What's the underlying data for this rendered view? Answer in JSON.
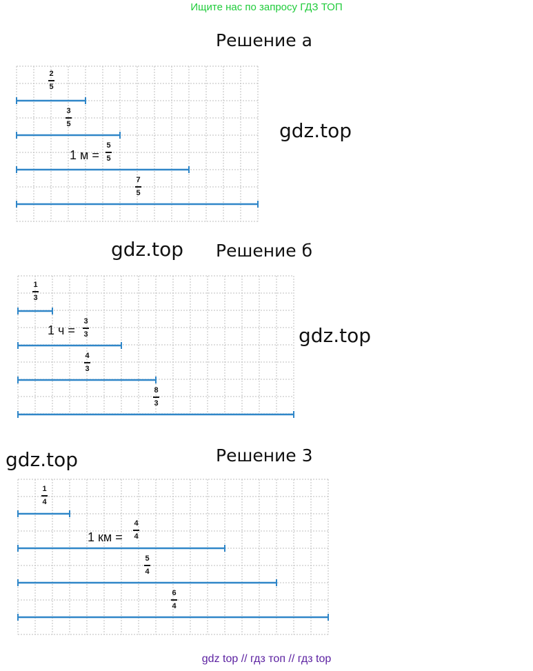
{
  "banner": "Ищите нас по запросу ГДЗ ТОП",
  "sections": [
    {
      "title": "Решение а"
    },
    {
      "title": "Решение б"
    },
    {
      "title": "Решение 3"
    }
  ],
  "watermarks": [
    "gdz.top",
    "gdz.top",
    "gdz.top",
    "gdz.top"
  ],
  "solution_a": {
    "fractions": [
      {
        "num": "2",
        "den": "5"
      },
      {
        "num": "3",
        "den": "5"
      },
      {
        "num": "7",
        "den": "5"
      }
    ],
    "equation": {
      "label": "1 м =",
      "num": "5",
      "den": "5"
    }
  },
  "solution_b": {
    "fractions": [
      {
        "num": "1",
        "den": "3"
      },
      {
        "num": "4",
        "den": "3"
      },
      {
        "num": "8",
        "den": "3"
      }
    ],
    "equation": {
      "label": "1 ч =",
      "num": "3",
      "den": "3"
    }
  },
  "solution_c": {
    "fractions": [
      {
        "num": "1",
        "den": "4"
      },
      {
        "num": "5",
        "den": "4"
      },
      {
        "num": "6",
        "den": "4"
      }
    ],
    "equation": {
      "label": "1 км =",
      "num": "4",
      "den": "4"
    }
  },
  "footer": "gdz top  //  гдз топ  //  гдз top",
  "colors": {
    "segment": "#2f86c8",
    "grid": "#bdbdbd",
    "banner": "#1fcb3a",
    "footer": "#5a1fa0"
  }
}
